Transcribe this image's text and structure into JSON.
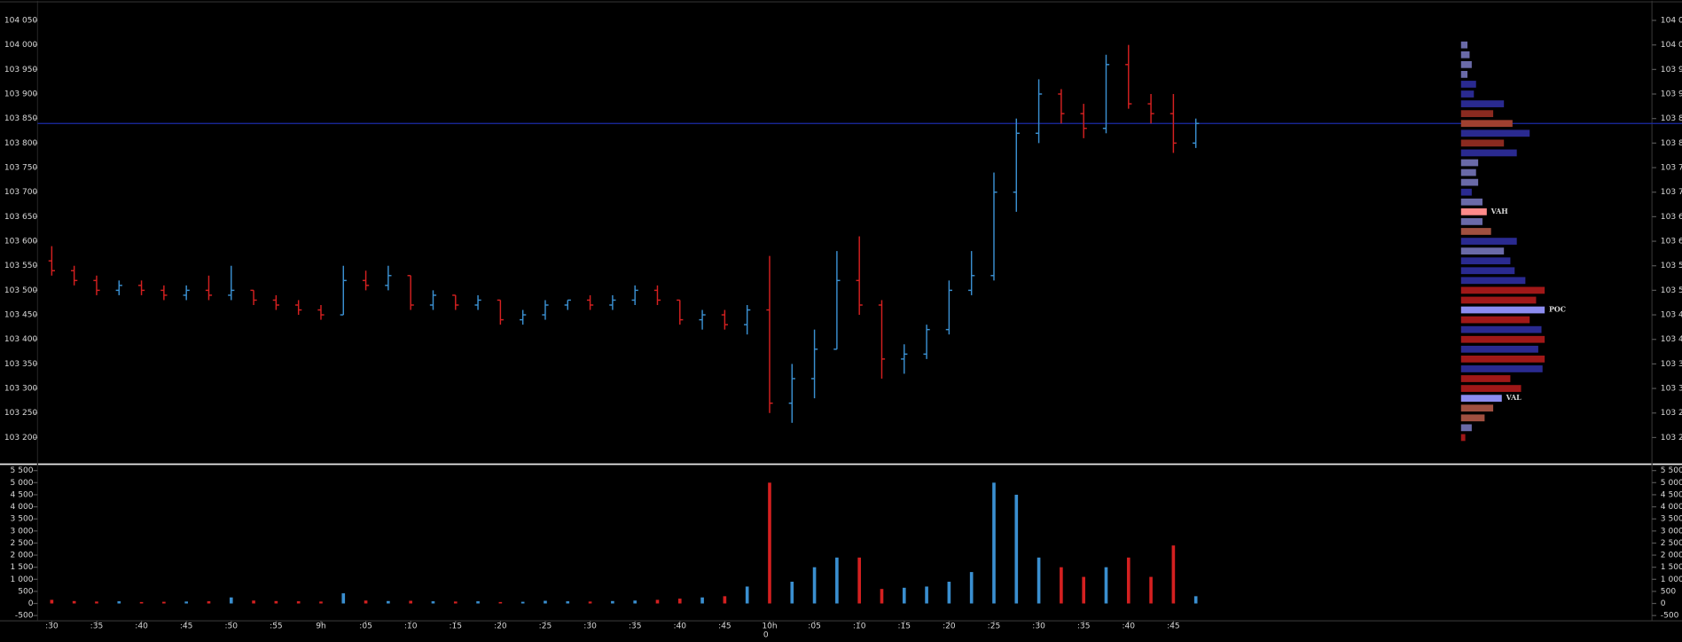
{
  "chart_data": {
    "type": "ohlc",
    "x": [
      0,
      3,
      6,
      9,
      12,
      15,
      18,
      21,
      24,
      27,
      30,
      33,
      36,
      39,
      42,
      45,
      48,
      51,
      54,
      57,
      60,
      63,
      66,
      69,
      72,
      75,
      78,
      81,
      84,
      87,
      90,
      93,
      96,
      99,
      102,
      105,
      108,
      111,
      114,
      117,
      120,
      123,
      126,
      129,
      132,
      135,
      138,
      141,
      144,
      147,
      150,
      153
    ],
    "open": [
      103.56,
      103.54,
      103.52,
      103.5,
      103.51,
      103.5,
      103.49,
      103.5,
      103.49,
      103.5,
      103.48,
      103.47,
      103.46,
      103.45,
      103.52,
      103.51,
      103.53,
      103.47,
      103.49,
      103.47,
      103.48,
      103.44,
      103.45,
      103.47,
      103.48,
      103.47,
      103.48,
      103.5,
      103.48,
      103.44,
      103.45,
      103.43,
      103.46,
      103.27,
      103.32,
      103.38,
      103.52,
      103.47,
      103.36,
      103.37,
      103.42,
      103.5,
      103.53,
      103.7,
      103.82,
      103.9,
      103.86,
      103.83,
      103.96,
      103.88,
      103.86,
      103.8
    ],
    "high": [
      103.59,
      103.55,
      103.53,
      103.52,
      103.52,
      103.51,
      103.51,
      103.53,
      103.55,
      103.5,
      103.49,
      103.48,
      103.47,
      103.55,
      103.54,
      103.55,
      103.53,
      103.5,
      103.49,
      103.49,
      103.48,
      103.46,
      103.48,
      103.48,
      103.49,
      103.49,
      103.51,
      103.51,
      103.48,
      103.46,
      103.46,
      103.47,
      103.57,
      103.35,
      103.42,
      103.58,
      103.61,
      103.48,
      103.39,
      103.43,
      103.52,
      103.58,
      103.74,
      103.85,
      103.93,
      103.91,
      103.88,
      103.98,
      104.0,
      103.9,
      103.9,
      103.85
    ],
    "low": [
      103.53,
      103.51,
      103.49,
      103.49,
      103.49,
      103.48,
      103.48,
      103.48,
      103.48,
      103.47,
      103.46,
      103.45,
      103.44,
      103.45,
      103.5,
      103.5,
      103.46,
      103.46,
      103.46,
      103.46,
      103.43,
      103.43,
      103.44,
      103.46,
      103.46,
      103.46,
      103.47,
      103.47,
      103.43,
      103.42,
      103.42,
      103.41,
      103.25,
      103.23,
      103.28,
      103.38,
      103.45,
      103.32,
      103.33,
      103.36,
      103.41,
      103.49,
      103.52,
      103.66,
      103.8,
      103.84,
      103.81,
      103.82,
      103.87,
      103.84,
      103.78,
      103.79
    ],
    "close": [
      103.54,
      103.52,
      103.5,
      103.51,
      103.5,
      103.49,
      103.5,
      103.49,
      103.5,
      103.48,
      103.47,
      103.46,
      103.45,
      103.52,
      103.51,
      103.53,
      103.47,
      103.49,
      103.47,
      103.48,
      103.44,
      103.45,
      103.47,
      103.48,
      103.47,
      103.48,
      103.5,
      103.48,
      103.44,
      103.45,
      103.43,
      103.46,
      103.27,
      103.32,
      103.38,
      103.52,
      103.47,
      103.36,
      103.37,
      103.42,
      103.5,
      103.53,
      103.7,
      103.82,
      103.9,
      103.86,
      103.83,
      103.96,
      103.88,
      103.86,
      103.8,
      103.84
    ],
    "up_color": "#3a8fd0",
    "down_color": "#d42020",
    "xlim": [
      -1.9,
      214
    ],
    "xticks": [
      {
        "value": 0,
        "label": ":30"
      },
      {
        "value": 6,
        "label": ":35"
      },
      {
        "value": 12,
        "label": ":40"
      },
      {
        "value": 18,
        "label": ":45"
      },
      {
        "value": 24,
        "label": ":50"
      },
      {
        "value": 30,
        "label": ":55"
      },
      {
        "value": 36,
        "label": "9h"
      },
      {
        "value": 42,
        "label": ":05"
      },
      {
        "value": 48,
        "label": ":10"
      },
      {
        "value": 54,
        "label": ":15"
      },
      {
        "value": 60,
        "label": ":20"
      },
      {
        "value": 66,
        "label": ":25"
      },
      {
        "value": 72,
        "label": ":30"
      },
      {
        "value": 78,
        "label": ":35"
      },
      {
        "value": 84,
        "label": ":40"
      },
      {
        "value": 90,
        "label": ":45"
      },
      {
        "value": 96,
        "label": "10h"
      },
      {
        "value": 102,
        "label": ":05"
      },
      {
        "value": 108,
        "label": ":10"
      },
      {
        "value": 114,
        "label": ":15"
      },
      {
        "value": 120,
        "label": ":20"
      },
      {
        "value": 126,
        "label": ":25"
      },
      {
        "value": 132,
        "label": ":30"
      },
      {
        "value": 138,
        "label": ":35"
      },
      {
        "value": 144,
        "label": ":40"
      },
      {
        "value": 150,
        "label": ":45"
      }
    ],
    "ylim": [
      103.15,
      104.09
    ],
    "yticks": [
      {
        "value": 104.05,
        "label": "104 050"
      },
      {
        "value": 104.0,
        "label": "104 000"
      },
      {
        "value": 103.95,
        "label": "103 950"
      },
      {
        "value": 103.9,
        "label": "103 900"
      },
      {
        "value": 103.85,
        "label": "103 850"
      },
      {
        "value": 103.8,
        "label": "103 800"
      },
      {
        "value": 103.75,
        "label": "103 750"
      },
      {
        "value": 103.7,
        "label": "103 700"
      },
      {
        "value": 103.65,
        "label": "103 650"
      },
      {
        "value": 103.6,
        "label": "103 600"
      },
      {
        "value": 103.55,
        "label": "103 550"
      },
      {
        "value": 103.5,
        "label": "103 500"
      },
      {
        "value": 103.45,
        "label": "103 450"
      },
      {
        "value": 103.4,
        "label": "103 400"
      },
      {
        "value": 103.35,
        "label": "103 350"
      },
      {
        "value": 103.3,
        "label": "103 300"
      },
      {
        "value": 103.25,
        "label": "103 250"
      },
      {
        "value": 103.2,
        "label": "103 200"
      }
    ],
    "reference_line": 103.84,
    "reference_color": "#1c2ca8",
    "volume": {
      "values": [
        150,
        100,
        80,
        90,
        60,
        70,
        80,
        90,
        250,
        120,
        100,
        90,
        80,
        420,
        120,
        100,
        110,
        90,
        80,
        90,
        60,
        70,
        110,
        90,
        80,
        100,
        120,
        150,
        200,
        250,
        300,
        700,
        5000,
        900,
        1500,
        1900,
        1900,
        600,
        650,
        700,
        900,
        1300,
        5000,
        4500,
        1900,
        1500,
        1100,
        1500,
        1900,
        1100,
        2400,
        300
      ],
      "ylim": [
        -720,
        5630
      ],
      "yticks": [
        {
          "value": 5500,
          "label": "5 500"
        },
        {
          "value": 5000,
          "label": "5 000"
        },
        {
          "value": 4500,
          "label": "4 500"
        },
        {
          "value": 4000,
          "label": "4 000"
        },
        {
          "value": 3500,
          "label": "3 500"
        },
        {
          "value": 3000,
          "label": "3 000"
        },
        {
          "value": 2500,
          "label": "2 500"
        },
        {
          "value": 2000,
          "label": "2 000"
        },
        {
          "value": 1500,
          "label": "1 500"
        },
        {
          "value": 1000,
          "label": "1 000"
        },
        500,
        0,
        -500
      ]
    },
    "profile": {
      "prices": [
        104.0,
        103.98,
        103.96,
        103.94,
        103.92,
        103.9,
        103.88,
        103.86,
        103.84,
        103.82,
        103.8,
        103.78,
        103.76,
        103.74,
        103.72,
        103.7,
        103.68,
        103.66,
        103.64,
        103.62,
        103.6,
        103.58,
        103.56,
        103.54,
        103.52,
        103.5,
        103.48,
        103.46,
        103.44,
        103.42,
        103.4,
        103.38,
        103.36,
        103.34,
        103.32,
        103.3,
        103.28,
        103.26,
        103.24,
        103.22,
        103.2
      ],
      "values": [
        6,
        8,
        10,
        6,
        14,
        12,
        40,
        30,
        48,
        64,
        40,
        52,
        16,
        14,
        16,
        10,
        20,
        24,
        20,
        28,
        52,
        40,
        46,
        50,
        60,
        78,
        70,
        78,
        64,
        75,
        78,
        72,
        78,
        76,
        46,
        56,
        38,
        30,
        22,
        10,
        4
      ],
      "colors": [
        "#6a6aa8",
        "#6a6aa8",
        "#6a6aa8",
        "#6a6aa8",
        "#2a2a90",
        "#2a2a90",
        "#2a2a90",
        "#8a2a20",
        "#a04030",
        "#2a2a90",
        "#8a2a20",
        "#2a2a90",
        "#6a6aa8",
        "#6a6aa8",
        "#6a6aa8",
        "#2a2a90",
        "#6a6aa8",
        "#ff8a8a",
        "#6a6aa8",
        "#a05040",
        "#2a2a90",
        "#6a6aa8",
        "#2a2a90",
        "#2a2a90",
        "#2a2a90",
        "#a01818",
        "#a01818",
        "#8c8cf0",
        "#a01818",
        "#2a2a90",
        "#a01818",
        "#2a2a90",
        "#a01818",
        "#2a2a90",
        "#a01818",
        "#a01818",
        "#8c8cf0",
        "#a05040",
        "#a05040",
        "#6a6aa8",
        "#a01818"
      ],
      "annotations": [
        {
          "text": "VAH",
          "price": 103.66
        },
        {
          "text": "POC",
          "price": 103.46
        },
        {
          "text": "VAL",
          "price": 103.28
        }
      ]
    },
    "footer_label": "0"
  }
}
